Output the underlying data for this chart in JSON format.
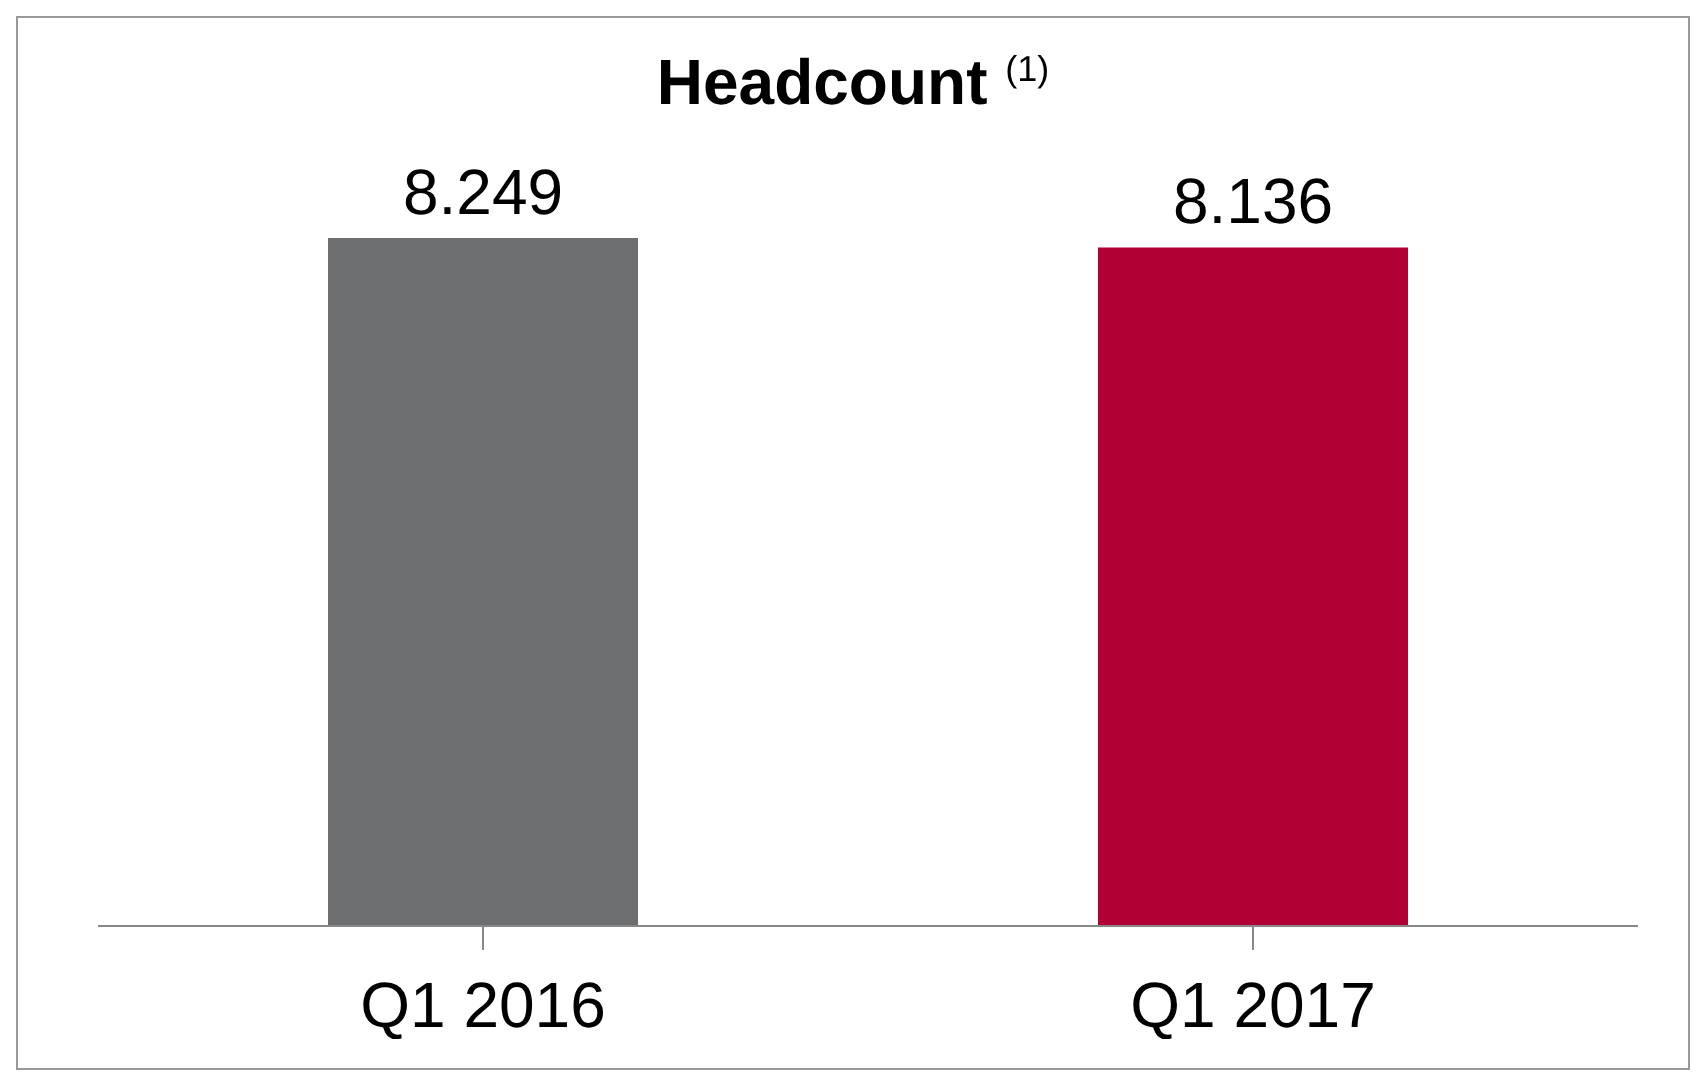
{
  "chart_data": {
    "type": "bar",
    "title": "Headcount $^{(1)}$",
    "categories": [
      "Q1 2016",
      "Q1 2017"
    ],
    "values": [
      8.249,
      8.136
    ],
    "colors": [
      "#6d6e70",
      "#b00034"
    ],
    "data_labels": true,
    "grid": false,
    "legend": false
  }
}
